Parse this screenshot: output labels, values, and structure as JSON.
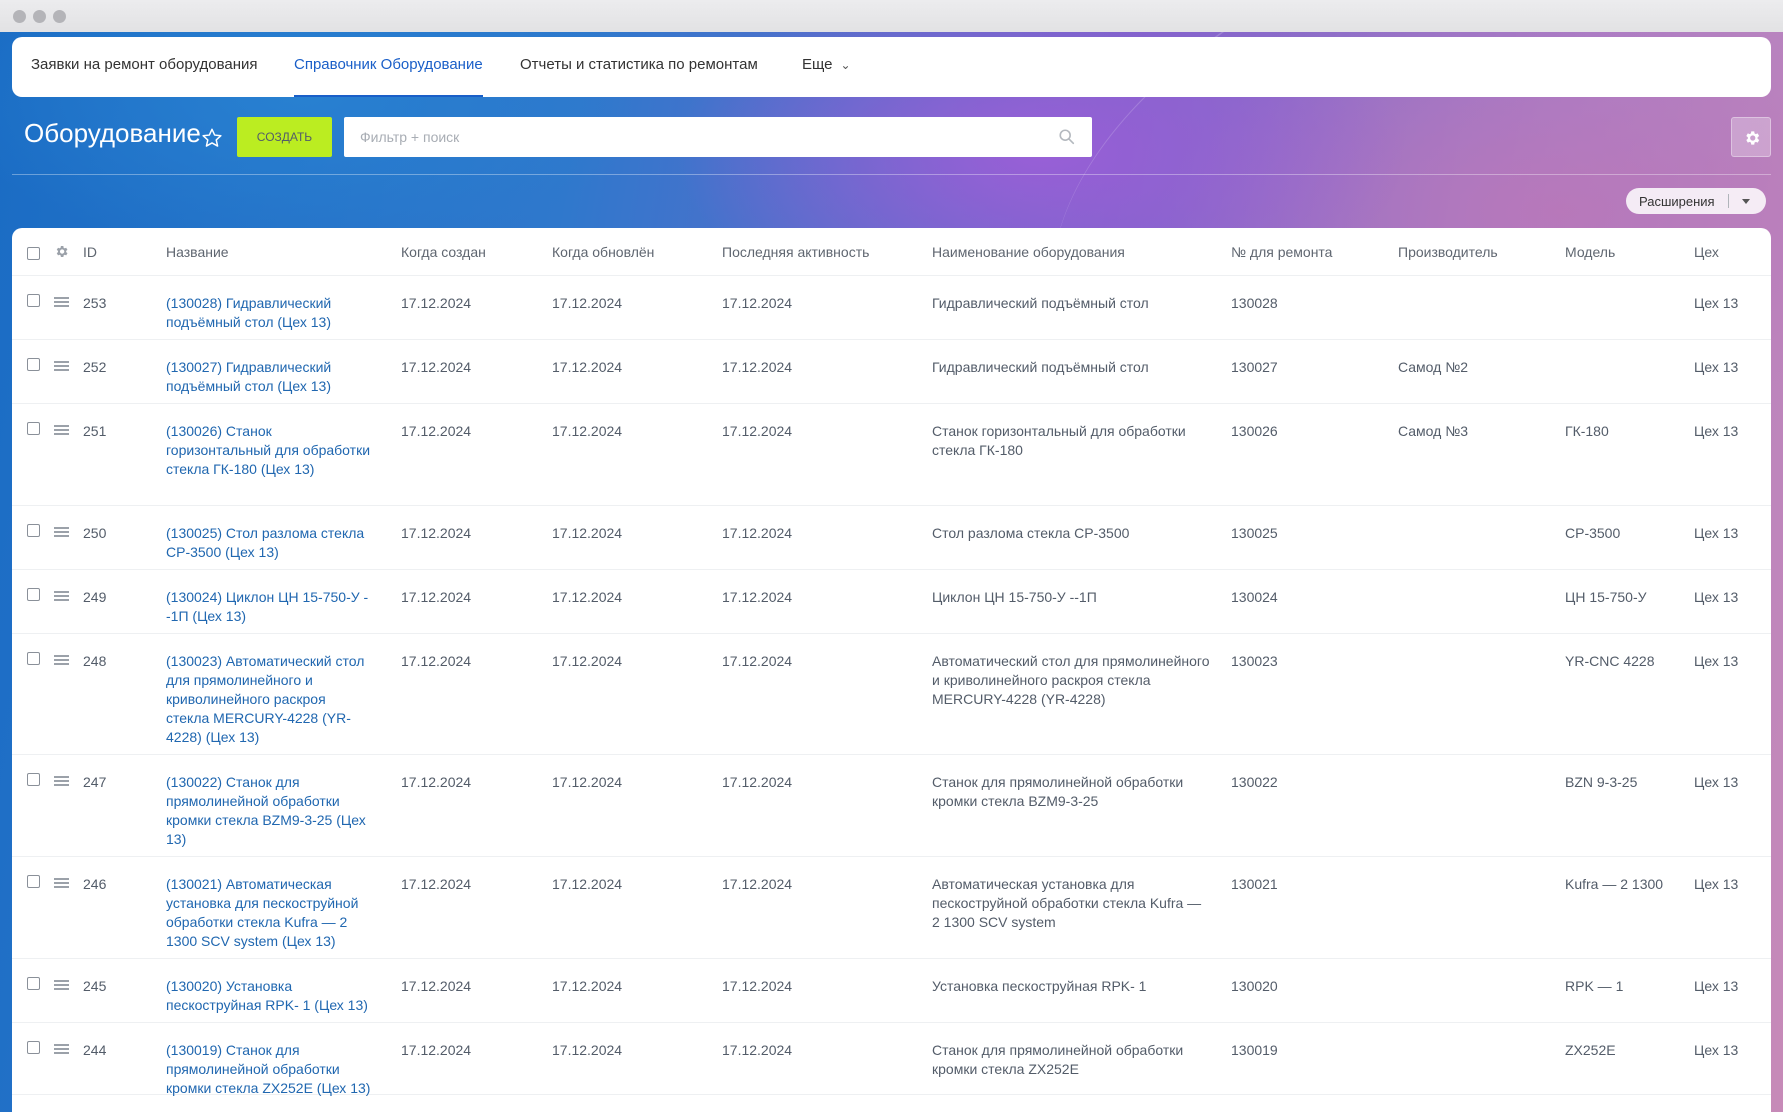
{
  "nav": {
    "items": [
      {
        "label": "Заявки на ремонт оборудования"
      },
      {
        "label": "Справочник Оборудование"
      },
      {
        "label": "Отчеты и статистика по ремонтам"
      }
    ],
    "more_label": "Еще"
  },
  "toolbar": {
    "title": "Оборудование",
    "create_label": "СОЗДАТЬ",
    "search_placeholder": "Фильтр + поиск",
    "extensions_label": "Расширения"
  },
  "colors": {
    "accent": "#1a5fc8",
    "create_button": "#bbed21",
    "link": "#2067b0"
  },
  "icons": [
    "star-icon",
    "search-icon",
    "gear-icon",
    "drag-handle-icon",
    "chevron-down-icon"
  ],
  "grid": {
    "columns": [
      "ID",
      "Название",
      "Когда создан",
      "Когда обновлён",
      "Последняя активность",
      "Наименование оборудования",
      "№ для ремонта",
      "Производитель",
      "Модель",
      "Цех"
    ],
    "rows": [
      {
        "id": "253",
        "name": "(130028) Гидравлический подъёмный стол (Цех 13)",
        "created": "17.12.2024",
        "updated": "17.12.2024",
        "activity": "17.12.2024",
        "equipment": "Гидравлический подъёмный стол",
        "repair_no": "130028",
        "maker": "",
        "model": "",
        "shop": "Цех 13"
      },
      {
        "id": "252",
        "name": "(130027) Гидравлический подъёмный стол (Цех 13)",
        "created": "17.12.2024",
        "updated": "17.12.2024",
        "activity": "17.12.2024",
        "equipment": "Гидравлический подъёмный стол",
        "repair_no": "130027",
        "maker": "Самод №2",
        "model": "",
        "shop": "Цех 13"
      },
      {
        "id": "251",
        "name": "(130026) Станок горизонтальный для обработки стекла ГК-180 (Цех 13)",
        "created": "17.12.2024",
        "updated": "17.12.2024",
        "activity": "17.12.2024",
        "equipment": "Станок горизонтальный для обработки стекла ГК-180",
        "repair_no": "130026",
        "maker": "Самод №3",
        "model": "ГК-180",
        "shop": "Цех 13"
      },
      {
        "id": "250",
        "name": "(130025) Стол разлома стекла СР-3500 (Цех 13)",
        "created": "17.12.2024",
        "updated": "17.12.2024",
        "activity": "17.12.2024",
        "equipment": "Стол разлома стекла СР-3500",
        "repair_no": "130025",
        "maker": "",
        "model": "СР-3500",
        "shop": "Цех 13"
      },
      {
        "id": "249",
        "name": "(130024) Циклон ЦН 15-750-У --1П (Цех 13)",
        "created": "17.12.2024",
        "updated": "17.12.2024",
        "activity": "17.12.2024",
        "equipment": "Циклон ЦН 15-750-У --1П",
        "repair_no": "130024",
        "maker": "",
        "model": "ЦН 15-750-У",
        "shop": "Цех 13"
      },
      {
        "id": "248",
        "name": "(130023) Автоматический стол для прямолинейного и криволинейного раскроя стекла MERCURY-4228 (YR-4228) (Цех 13)",
        "created": "17.12.2024",
        "updated": "17.12.2024",
        "activity": "17.12.2024",
        "equipment": "Автоматический стол для прямолинейного и криволинейного раскроя стекла MERCURY-4228 (YR-4228)",
        "repair_no": "130023",
        "maker": "",
        "model": "YR-CNC 4228",
        "shop": "Цех 13"
      },
      {
        "id": "247",
        "name": "(130022) Станок для прямолинейной обработки кромки стекла BZM9-3-25 (Цех 13)",
        "created": "17.12.2024",
        "updated": "17.12.2024",
        "activity": "17.12.2024",
        "equipment": "Станок для прямолинейной обработки кромки стекла BZM9-3-25",
        "repair_no": "130022",
        "maker": "",
        "model": "BZN 9-3-25",
        "shop": "Цех 13"
      },
      {
        "id": "246",
        "name": "(130021) Автоматическая установка для пескоструйной обработки стекла Kufra — 2 1300 SCV system (Цех 13)",
        "created": "17.12.2024",
        "updated": "17.12.2024",
        "activity": "17.12.2024",
        "equipment": "Автоматическая установка для пескоструйной обработки стекла Kufra — 2 1300 SCV system",
        "repair_no": "130021",
        "maker": "",
        "model": "Kufra — 2 1300",
        "shop": "Цех 13"
      },
      {
        "id": "245",
        "name": "(130020) Установка пескоструйная RPK- 1 (Цех 13)",
        "created": "17.12.2024",
        "updated": "17.12.2024",
        "activity": "17.12.2024",
        "equipment": "Установка пескоструйная RPK- 1",
        "repair_no": "130020",
        "maker": "",
        "model": "RPK — 1",
        "shop": "Цех 13"
      },
      {
        "id": "244",
        "name": "(130019) Станок для прямолинейной обработки кромки стекла ZX252E (Цех 13)",
        "created": "17.12.2024",
        "updated": "17.12.2024",
        "activity": "17.12.2024",
        "equipment": "Станок для прямолинейной обработки кромки стекла ZX252E",
        "repair_no": "130019",
        "maker": "",
        "model": "ZX252E",
        "shop": "Цех 13"
      }
    ]
  }
}
